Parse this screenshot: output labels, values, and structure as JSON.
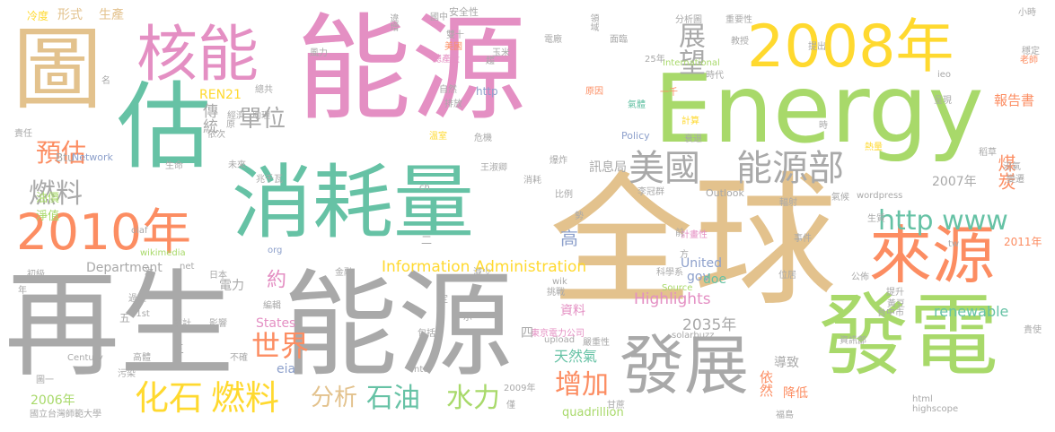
{
  "words": [
    {
      "text": "能源",
      "color": "#e48fc3"
    },
    {
      "text": "全球",
      "color": "#e3c28d"
    },
    {
      "text": "能源",
      "color": "#a9a9a9"
    },
    {
      "text": "再生",
      "color": "#a9a9a9"
    },
    {
      "text": "Energy",
      "color": "#a8d96a"
    },
    {
      "text": "消耗量",
      "color": "#66c2a5"
    },
    {
      "text": "發電",
      "color": "#a8d96a"
    },
    {
      "text": "估",
      "color": "#66c2a5"
    },
    {
      "text": "圖",
      "color": "#e3c28d"
    },
    {
      "text": "2008年",
      "color": "#ffd92f"
    },
    {
      "text": "2010年",
      "color": "#fc8d62"
    },
    {
      "text": "核能",
      "color": "#e48fc3"
    },
    {
      "text": "來源",
      "color": "#fc8d62"
    },
    {
      "text": "發展",
      "color": "#a9a9a9"
    },
    {
      "text": "美國",
      "color": "#a9a9a9"
    },
    {
      "text": "能源部",
      "color": "#a9a9a9"
    },
    {
      "text": "http www",
      "color": "#66c2a5"
    },
    {
      "text": "展望",
      "color": "#a9a9a9"
    },
    {
      "text": "化石",
      "color": "#ffd92f"
    },
    {
      "text": "燃料",
      "color": "#ffd92f"
    },
    {
      "text": "石油",
      "color": "#66c2a5"
    },
    {
      "text": "水力",
      "color": "#a8d96a"
    },
    {
      "text": "分析",
      "color": "#e3c28d"
    },
    {
      "text": "世界",
      "color": "#fc8d62"
    },
    {
      "text": "增加",
      "color": "#fc8d62"
    },
    {
      "text": "單位",
      "color": "#a9a9a9"
    },
    {
      "text": "預估",
      "color": "#fc8d62"
    },
    {
      "text": "燃料",
      "color": "#a9a9a9"
    },
    {
      "text": "傳統",
      "color": "#a9a9a9"
    },
    {
      "text": "高",
      "color": "#8da0cb"
    },
    {
      "text": "Information Administration",
      "color": "#ffd92f"
    },
    {
      "text": "煤炭",
      "color": "#fc8d62"
    },
    {
      "text": "報告書",
      "color": "#fc8d62"
    },
    {
      "text": "renewable",
      "color": "#66c2a5"
    },
    {
      "text": "Highlights",
      "color": "#e48fc3"
    },
    {
      "text": "2035年",
      "color": "#a9a9a9"
    },
    {
      "text": "天然氣",
      "color": "#66c2a5"
    },
    {
      "text": "訊息局",
      "color": "#a9a9a9"
    },
    {
      "text": "生產",
      "color": "#e3c28d"
    },
    {
      "text": "形式",
      "color": "#e3c28d"
    },
    {
      "text": "冷度",
      "color": "#ffd92f"
    },
    {
      "text": "REN21",
      "color": "#ffd92f"
    },
    {
      "text": "Department",
      "color": "#a9a9a9"
    },
    {
      "text": "United",
      "color": "#8da0cb"
    },
    {
      "text": "States",
      "color": "#e48fc3"
    },
    {
      "text": "gov",
      "color": "#8da0cb"
    },
    {
      "text": "doe",
      "color": "#66c2a5"
    },
    {
      "text": "eia",
      "color": "#8da0cb"
    },
    {
      "text": "約",
      "color": "#e48fc3"
    },
    {
      "text": "電力",
      "color": "#a9a9a9"
    },
    {
      "text": "資料",
      "color": "#e48fc3"
    },
    {
      "text": "導致",
      "color": "#a9a9a9"
    },
    {
      "text": "依然",
      "color": "#fc8d62"
    },
    {
      "text": "降低",
      "color": "#fc8d62"
    },
    {
      "text": "2006年",
      "color": "#a8d96a"
    },
    {
      "text": "2007年",
      "color": "#a9a9a9"
    },
    {
      "text": "2011年",
      "color": "#fc8d62"
    },
    {
      "text": "quadrillion",
      "color": "#a8d96a"
    },
    {
      "text": "Btu",
      "color": "#a9a9a9"
    },
    {
      "text": "Network",
      "color": "#8da0cb"
    },
    {
      "text": "油價",
      "color": "#a8d96a"
    },
    {
      "text": "淨值",
      "color": "#a8d96a"
    },
    {
      "text": "http",
      "color": "#8da0cb"
    },
    {
      "text": "Policy",
      "color": "#8da0cb"
    },
    {
      "text": "Outlook",
      "color": "#a9a9a9"
    },
    {
      "text": "International",
      "color": "#a8d96a"
    },
    {
      "text": "安全性",
      "color": "#a9a9a9"
    },
    {
      "text": "國中",
      "color": "#a9a9a9"
    },
    {
      "text": "違增",
      "color": "#a9a9a9"
    },
    {
      "text": "電廠",
      "color": "#a9a9a9"
    },
    {
      "text": "領域",
      "color": "#a9a9a9"
    },
    {
      "text": "分析圖",
      "color": "#a9a9a9"
    },
    {
      "text": "重要性",
      "color": "#a9a9a9"
    },
    {
      "text": "小時",
      "color": "#a9a9a9"
    },
    {
      "text": "穩定",
      "color": "#a9a9a9"
    },
    {
      "text": "風力",
      "color": "#a9a9a9"
    },
    {
      "text": "雙十",
      "color": "#a9a9a9"
    },
    {
      "text": "美國",
      "color": "#fc8d62"
    },
    {
      "text": "總產量",
      "color": "#e48fc3"
    },
    {
      "text": "玉米",
      "color": "#a9a9a9"
    },
    {
      "text": "面臨",
      "color": "#a9a9a9"
    },
    {
      "text": "教授",
      "color": "#a9a9a9"
    },
    {
      "text": "提出",
      "color": "#a9a9a9"
    },
    {
      "text": "老師",
      "color": "#fc8d62"
    },
    {
      "text": "25年",
      "color": "#a9a9a9"
    },
    {
      "text": "時代",
      "color": "#a9a9a9"
    },
    {
      "text": "呈現",
      "color": "#a9a9a9"
    },
    {
      "text": "ieo",
      "color": "#a9a9a9"
    },
    {
      "text": "總共",
      "color": "#a9a9a9"
    },
    {
      "text": "自然",
      "color": "#a9a9a9"
    },
    {
      "text": "原因",
      "color": "#fc8d62"
    },
    {
      "text": "氣體",
      "color": "#66c2a5"
    },
    {
      "text": "一千",
      "color": "#fc8d62"
    },
    {
      "text": "經濟",
      "color": "#a9a9a9"
    },
    {
      "text": "助理",
      "color": "#a9a9a9"
    },
    {
      "text": "排放",
      "color": "#a9a9a9"
    },
    {
      "text": "危機",
      "color": "#a9a9a9"
    },
    {
      "text": "計算",
      "color": "#ffd92f"
    },
    {
      "text": "溫室",
      "color": "#ffd92f"
    },
    {
      "text": "衰退",
      "color": "#a9a9a9"
    },
    {
      "text": "熱量",
      "color": "#ffd92f"
    },
    {
      "text": "稻草",
      "color": "#a9a9a9"
    },
    {
      "text": "沼氣",
      "color": "#a9a9a9"
    },
    {
      "text": "變遷",
      "color": "#a9a9a9"
    },
    {
      "text": "責任",
      "color": "#a9a9a9"
    },
    {
      "text": "依次",
      "color": "#a9a9a9"
    },
    {
      "text": "生命",
      "color": "#a9a9a9"
    },
    {
      "text": "兆千瓦",
      "color": "#a9a9a9"
    },
    {
      "text": "未來",
      "color": "#a9a9a9"
    },
    {
      "text": "王淑卿",
      "color": "#a9a9a9"
    },
    {
      "text": "消耗",
      "color": "#a9a9a9"
    },
    {
      "text": "比例",
      "color": "#a9a9a9"
    },
    {
      "text": "李冠群",
      "color": "#a9a9a9"
    },
    {
      "text": "輻射",
      "color": "#a9a9a9"
    },
    {
      "text": "氣候",
      "color": "#a9a9a9"
    },
    {
      "text": "wordpress",
      "color": "#a9a9a9"
    },
    {
      "text": "oiaf",
      "color": "#a9a9a9"
    },
    {
      "text": "wikimedia",
      "color": "#a8d96a"
    },
    {
      "text": "org",
      "color": "#8da0cb"
    },
    {
      "text": "ch",
      "color": "#a9a9a9"
    },
    {
      "text": "tw",
      "color": "#a9a9a9"
    },
    {
      "text": "生質",
      "color": "#a9a9a9"
    },
    {
      "text": "事件",
      "color": "#a9a9a9"
    },
    {
      "text": "計畫性",
      "color": "#e48fc3"
    },
    {
      "text": "初級",
      "color": "#a9a9a9"
    },
    {
      "text": "net",
      "color": "#a9a9a9"
    },
    {
      "text": "日本",
      "color": "#a9a9a9"
    },
    {
      "text": "金融",
      "color": "#a9a9a9"
    },
    {
      "text": "減少",
      "color": "#a9a9a9"
    },
    {
      "text": "科學系",
      "color": "#a9a9a9"
    },
    {
      "text": "位居",
      "color": "#a9a9a9"
    },
    {
      "text": "公佈",
      "color": "#a9a9a9"
    },
    {
      "text": "過程",
      "color": "#a9a9a9"
    },
    {
      "text": "編輯",
      "color": "#a9a9a9"
    },
    {
      "text": "挑戰",
      "color": "#a9a9a9"
    },
    {
      "text": "wik",
      "color": "#a9a9a9"
    },
    {
      "text": "Source",
      "color": "#a8d96a"
    },
    {
      "text": "提升",
      "color": "#a9a9a9"
    },
    {
      "text": "黃豆",
      "color": "#a9a9a9"
    },
    {
      "text": "台中市",
      "color": "#a9a9a9"
    },
    {
      "text": "21st",
      "color": "#a9a9a9"
    },
    {
      "text": "統計",
      "color": "#a9a9a9"
    },
    {
      "text": "影響",
      "color": "#a9a9a9"
    },
    {
      "text": "包括",
      "color": "#a9a9a9"
    },
    {
      "text": "東京電力公司",
      "color": "#e48fc3"
    },
    {
      "text": "solarbuzz",
      "color": "#a9a9a9"
    },
    {
      "text": "資訊部",
      "color": "#a9a9a9"
    },
    {
      "text": "upload",
      "color": "#a9a9a9"
    },
    {
      "text": "嚴重性",
      "color": "#a9a9a9"
    },
    {
      "text": "Century",
      "color": "#a9a9a9"
    },
    {
      "text": "高體",
      "color": "#a9a9a9"
    },
    {
      "text": "不確",
      "color": "#a9a9a9"
    },
    {
      "text": "ntu",
      "color": "#a9a9a9"
    },
    {
      "text": "2009年",
      "color": "#a9a9a9"
    },
    {
      "text": "污染",
      "color": "#a9a9a9"
    },
    {
      "text": "圖一",
      "color": "#a9a9a9"
    },
    {
      "text": "國立台灣師範大學",
      "color": "#a9a9a9"
    },
    {
      "text": "甘蔗",
      "color": "#a9a9a9"
    },
    {
      "text": "html",
      "color": "#a9a9a9"
    },
    {
      "text": "highscope",
      "color": "#a9a9a9"
    },
    {
      "text": "福島",
      "color": "#a9a9a9"
    },
    {
      "text": "貴使",
      "color": "#a9a9a9"
    },
    {
      "text": "四",
      "color": "#a9a9a9"
    },
    {
      "text": "五",
      "color": "#a9a9a9"
    },
    {
      "text": "三",
      "color": "#a9a9a9"
    },
    {
      "text": "二",
      "color": "#a9a9a9"
    },
    {
      "text": "年",
      "color": "#a9a9a9"
    },
    {
      "text": "原",
      "color": "#a9a9a9"
    },
    {
      "text": "名",
      "color": "#a9a9a9"
    },
    {
      "text": "示",
      "color": "#a9a9a9"
    },
    {
      "text": "時",
      "color": "#a9a9a9"
    },
    {
      "text": "前",
      "color": "#a9a9a9"
    },
    {
      "text": "方",
      "color": "#a9a9a9"
    },
    {
      "text": "次",
      "color": "#a9a9a9"
    },
    {
      "text": "定",
      "color": "#a9a9a9"
    },
    {
      "text": "勢",
      "color": "#a9a9a9"
    },
    {
      "text": "趨",
      "color": "#a9a9a9"
    },
    {
      "text": "爆炸",
      "color": "#a9a9a9"
    },
    {
      "text": "僅",
      "color": "#a9a9a9"
    }
  ]
}
